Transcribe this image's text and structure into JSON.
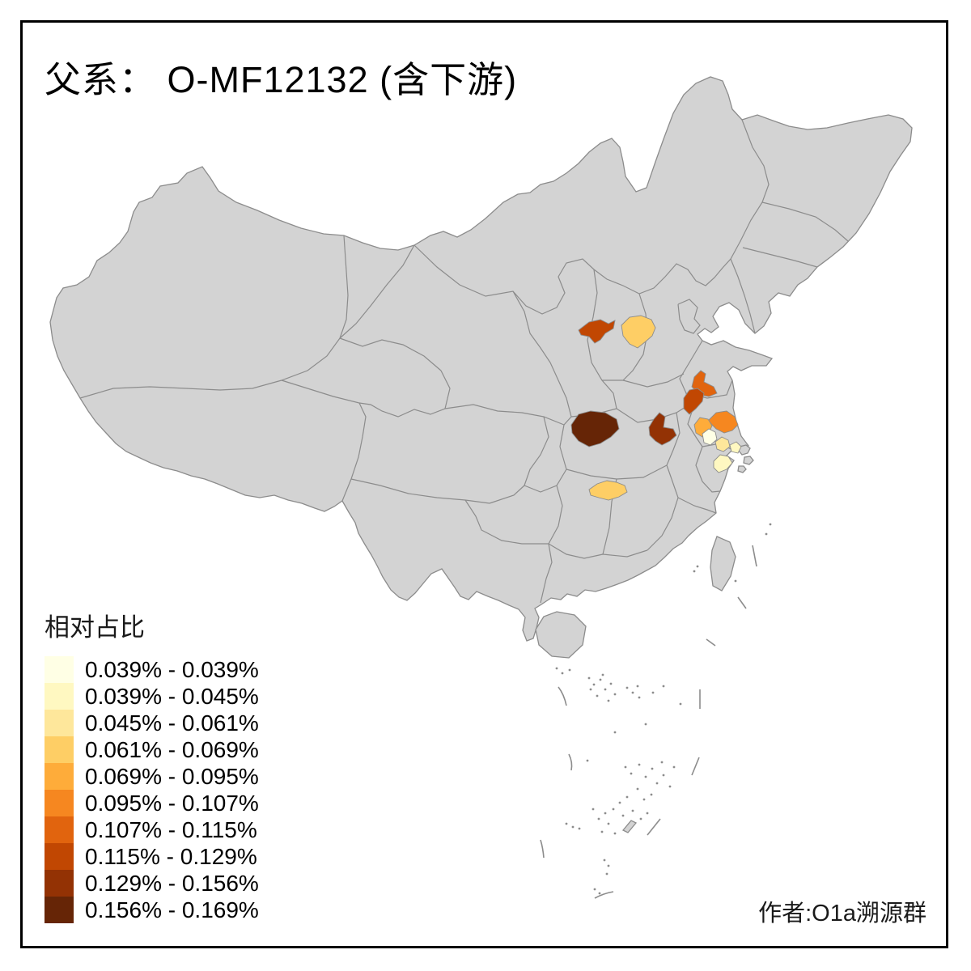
{
  "title": "父系：  O-MF12132 (含下游)",
  "legend": {
    "title": "相对占比",
    "classes": [
      {
        "label": "0.039% - 0.039%",
        "color": "#FFFFE5"
      },
      {
        "label": "0.039% - 0.045%",
        "color": "#FFF8C1"
      },
      {
        "label": "0.045% - 0.061%",
        "color": "#FEE79B"
      },
      {
        "label": "0.061% - 0.069%",
        "color": "#FECE65"
      },
      {
        "label": "0.069% - 0.095%",
        "color": "#FEAC3A"
      },
      {
        "label": "0.095% - 0.107%",
        "color": "#F68720"
      },
      {
        "label": "0.107% - 0.115%",
        "color": "#E1640E"
      },
      {
        "label": "0.115% - 0.129%",
        "color": "#C14702"
      },
      {
        "label": "0.129% - 0.156%",
        "color": "#933204"
      },
      {
        "label": "0.156% - 0.169%",
        "color": "#662506"
      }
    ]
  },
  "attribution": "作者:O1a溯源群",
  "map": {
    "base_fill": "#D3D3D3",
    "border_color": "#8C8C8C",
    "background": "#FFFFFF",
    "highlight_count": 13
  }
}
